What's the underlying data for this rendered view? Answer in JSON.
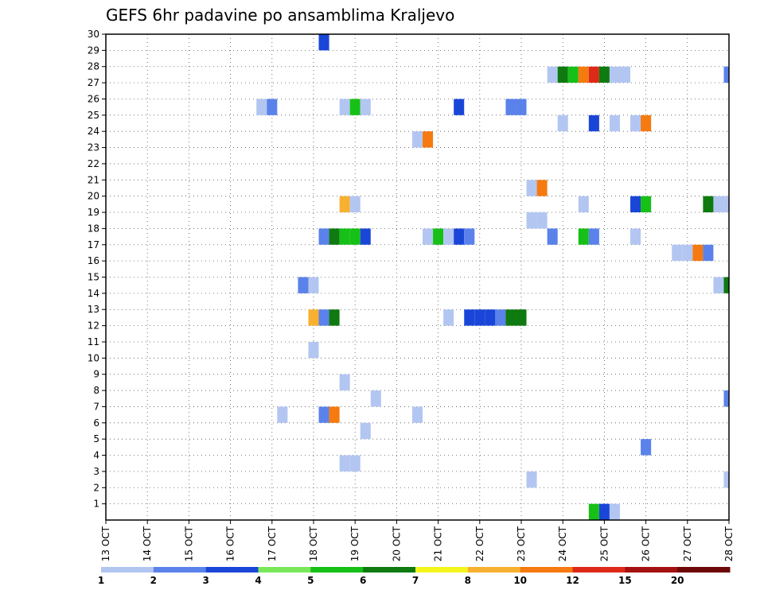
{
  "chart_data": {
    "type": "heatmap",
    "title": "GEFS 6hr padavine po ansamblima Kraljevo",
    "xlabel": "",
    "ylabel": "",
    "x_tick_labels": [
      "13 OCT",
      "14 OCT",
      "15 OCT",
      "16 OCT",
      "17 OCT",
      "18 OCT",
      "19 OCT",
      "20 OCT",
      "21 OCT",
      "22 OCT",
      "23 OCT",
      "24 OCT",
      "25 OCT",
      "26 OCT",
      "27 OCT",
      "28 OCT"
    ],
    "x_ticks": [
      0,
      1,
      2,
      3,
      4,
      5,
      6,
      7,
      8,
      9,
      10,
      11,
      12,
      13,
      14,
      15
    ],
    "xlim": [
      0,
      15
    ],
    "y_tick_labels": [
      "1",
      "2",
      "3",
      "4",
      "5",
      "6",
      "7",
      "8",
      "9",
      "10",
      "11",
      "12",
      "13",
      "14",
      "15",
      "16",
      "17",
      "18",
      "19",
      "20",
      "21",
      "22",
      "23",
      "24",
      "25",
      "26",
      "27",
      "28",
      "29",
      "30"
    ],
    "ylim": [
      0,
      30
    ],
    "grid": true,
    "legend_placement": "bottom",
    "legend": {
      "labels": [
        "1",
        "2",
        "3",
        "4",
        "5",
        "6",
        "7",
        "8",
        "10",
        "12",
        "15",
        "20"
      ],
      "colors": [
        "#b3c6f2",
        "#5a82ea",
        "#1a46d8",
        "#78e85a",
        "#16c016",
        "#0e7a10",
        "#f5f51e",
        "#f8b030",
        "#f57a10",
        "#dd2a18",
        "#a51010",
        "#6e0808"
      ]
    },
    "bins": [
      1,
      2,
      3,
      4,
      5,
      6,
      7,
      8,
      10,
      12,
      15,
      20
    ],
    "cell_width_days": 0.25,
    "cells": [
      {
        "x": 5.25,
        "y": 30,
        "v": 3
      },
      {
        "x": 10.75,
        "y": 28,
        "v": 1
      },
      {
        "x": 11.0,
        "y": 28,
        "v": 6
      },
      {
        "x": 11.25,
        "y": 28,
        "v": 5
      },
      {
        "x": 11.5,
        "y": 28,
        "v": 10
      },
      {
        "x": 11.75,
        "y": 28,
        "v": 12
      },
      {
        "x": 12.0,
        "y": 28,
        "v": 6
      },
      {
        "x": 12.25,
        "y": 28,
        "v": 1
      },
      {
        "x": 12.5,
        "y": 28,
        "v": 1
      },
      {
        "x": 15.0,
        "y": 28,
        "v": 2
      },
      {
        "x": 3.75,
        "y": 26,
        "v": 1
      },
      {
        "x": 4.0,
        "y": 26,
        "v": 2
      },
      {
        "x": 5.75,
        "y": 26,
        "v": 1
      },
      {
        "x": 6.0,
        "y": 26,
        "v": 5
      },
      {
        "x": 6.25,
        "y": 26,
        "v": 1
      },
      {
        "x": 8.5,
        "y": 26,
        "v": 3
      },
      {
        "x": 9.75,
        "y": 26,
        "v": 2
      },
      {
        "x": 10.0,
        "y": 26,
        "v": 2
      },
      {
        "x": 11.0,
        "y": 25,
        "v": 1
      },
      {
        "x": 11.75,
        "y": 25,
        "v": 3
      },
      {
        "x": 12.25,
        "y": 25,
        "v": 1
      },
      {
        "x": 12.75,
        "y": 25,
        "v": 1
      },
      {
        "x": 13.0,
        "y": 25,
        "v": 10
      },
      {
        "x": 7.5,
        "y": 24,
        "v": 1
      },
      {
        "x": 7.75,
        "y": 24,
        "v": 10
      },
      {
        "x": 10.25,
        "y": 21,
        "v": 1
      },
      {
        "x": 10.5,
        "y": 21,
        "v": 10
      },
      {
        "x": 5.75,
        "y": 20,
        "v": 8
      },
      {
        "x": 6.0,
        "y": 20,
        "v": 1
      },
      {
        "x": 11.5,
        "y": 20,
        "v": 1
      },
      {
        "x": 12.75,
        "y": 20,
        "v": 3
      },
      {
        "x": 13.0,
        "y": 20,
        "v": 5
      },
      {
        "x": 14.5,
        "y": 20,
        "v": 6
      },
      {
        "x": 14.75,
        "y": 20,
        "v": 1
      },
      {
        "x": 15.0,
        "y": 20,
        "v": 1
      },
      {
        "x": 10.25,
        "y": 19,
        "v": 1
      },
      {
        "x": 10.5,
        "y": 19,
        "v": 1
      },
      {
        "x": 5.25,
        "y": 18,
        "v": 2
      },
      {
        "x": 5.5,
        "y": 18,
        "v": 6
      },
      {
        "x": 5.75,
        "y": 18,
        "v": 5
      },
      {
        "x": 6.0,
        "y": 18,
        "v": 5
      },
      {
        "x": 6.25,
        "y": 18,
        "v": 3
      },
      {
        "x": 7.75,
        "y": 18,
        "v": 1
      },
      {
        "x": 8.0,
        "y": 18,
        "v": 5
      },
      {
        "x": 8.25,
        "y": 18,
        "v": 1
      },
      {
        "x": 8.5,
        "y": 18,
        "v": 3
      },
      {
        "x": 8.75,
        "y": 18,
        "v": 2
      },
      {
        "x": 10.75,
        "y": 18,
        "v": 2
      },
      {
        "x": 11.5,
        "y": 18,
        "v": 5
      },
      {
        "x": 11.75,
        "y": 18,
        "v": 2
      },
      {
        "x": 12.75,
        "y": 18,
        "v": 1
      },
      {
        "x": 13.75,
        "y": 17,
        "v": 1
      },
      {
        "x": 14.0,
        "y": 17,
        "v": 1
      },
      {
        "x": 14.25,
        "y": 17,
        "v": 10
      },
      {
        "x": 14.5,
        "y": 17,
        "v": 2
      },
      {
        "x": 4.75,
        "y": 15,
        "v": 2
      },
      {
        "x": 5.0,
        "y": 15,
        "v": 1
      },
      {
        "x": 14.75,
        "y": 15,
        "v": 1
      },
      {
        "x": 15.0,
        "y": 15,
        "v": 6
      },
      {
        "x": 5.0,
        "y": 13,
        "v": 8
      },
      {
        "x": 5.25,
        "y": 13,
        "v": 2
      },
      {
        "x": 5.5,
        "y": 13,
        "v": 6
      },
      {
        "x": 8.25,
        "y": 13,
        "v": 1
      },
      {
        "x": 8.75,
        "y": 13,
        "v": 3
      },
      {
        "x": 9.0,
        "y": 13,
        "v": 3
      },
      {
        "x": 9.25,
        "y": 13,
        "v": 3
      },
      {
        "x": 9.5,
        "y": 13,
        "v": 2
      },
      {
        "x": 9.75,
        "y": 13,
        "v": 6
      },
      {
        "x": 10.0,
        "y": 13,
        "v": 6
      },
      {
        "x": 5.0,
        "y": 11,
        "v": 1
      },
      {
        "x": 5.75,
        "y": 9,
        "v": 1
      },
      {
        "x": 6.5,
        "y": 8,
        "v": 1
      },
      {
        "x": 15.0,
        "y": 8,
        "v": 2
      },
      {
        "x": 4.25,
        "y": 7,
        "v": 1
      },
      {
        "x": 5.25,
        "y": 7,
        "v": 2
      },
      {
        "x": 5.5,
        "y": 7,
        "v": 10
      },
      {
        "x": 7.5,
        "y": 7,
        "v": 1
      },
      {
        "x": 6.25,
        "y": 6,
        "v": 1
      },
      {
        "x": 13.0,
        "y": 5,
        "v": 2
      },
      {
        "x": 5.75,
        "y": 4,
        "v": 1
      },
      {
        "x": 6.0,
        "y": 4,
        "v": 1
      },
      {
        "x": 10.25,
        "y": 3,
        "v": 1
      },
      {
        "x": 15.0,
        "y": 3,
        "v": 1
      },
      {
        "x": 11.75,
        "y": 1,
        "v": 5
      },
      {
        "x": 12.0,
        "y": 1,
        "v": 3
      },
      {
        "x": 12.25,
        "y": 1,
        "v": 1
      }
    ]
  }
}
